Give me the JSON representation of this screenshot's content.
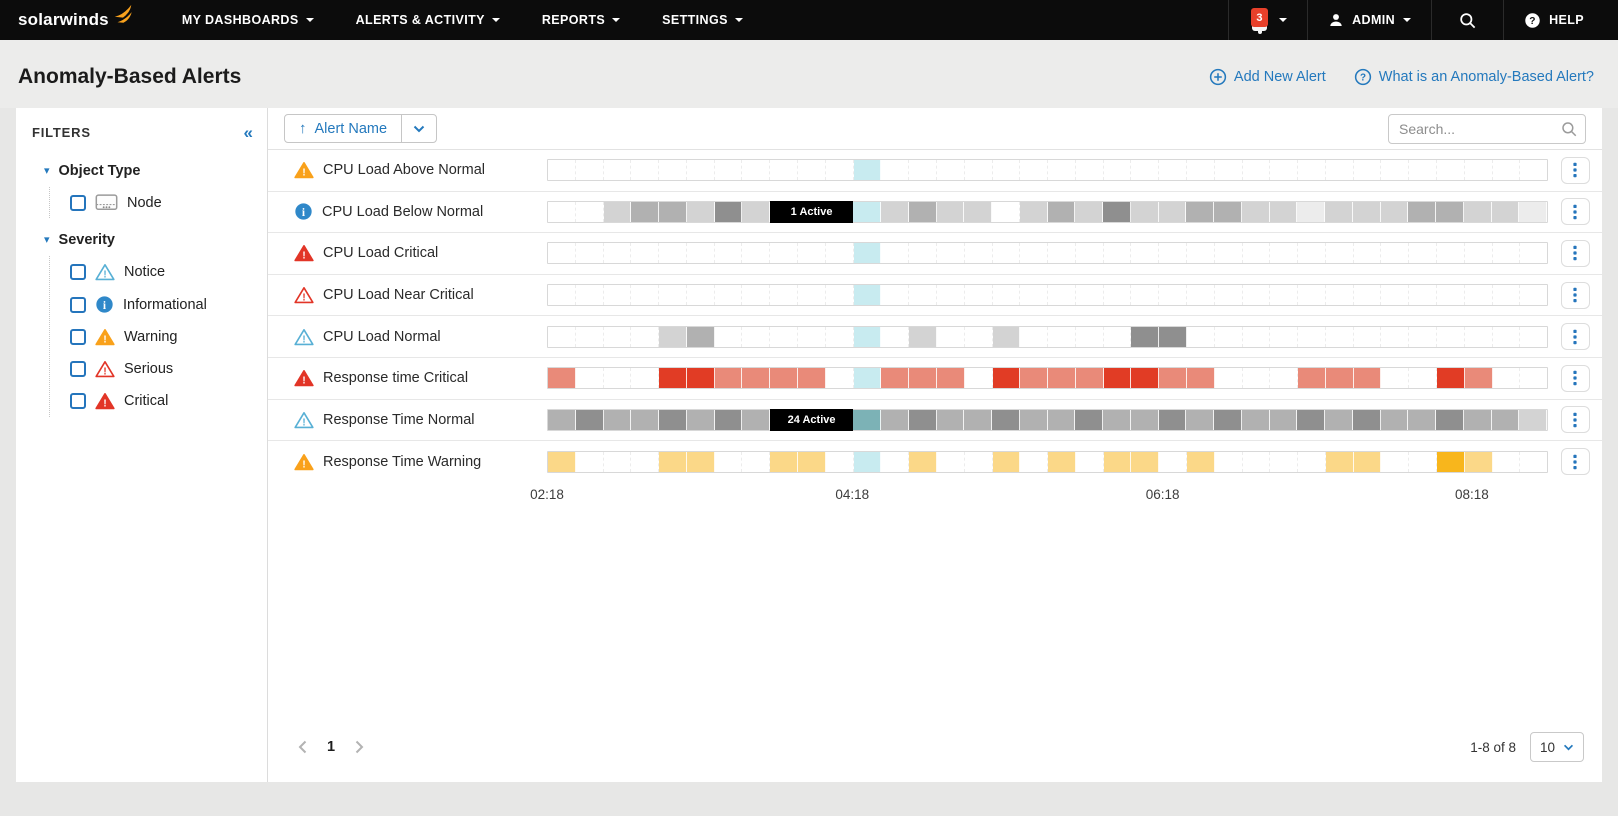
{
  "nav": {
    "brand": "solarwinds",
    "items": [
      {
        "label": "MY DASHBOARDS"
      },
      {
        "label": "ALERTS & ACTIVITY"
      },
      {
        "label": "REPORTS"
      },
      {
        "label": "SETTINGS"
      }
    ],
    "notification_count": "3",
    "user_label": "ADMIN",
    "help_label": "HELP"
  },
  "header": {
    "title": "Anomaly-Based Alerts",
    "actions": [
      {
        "label": "Add New Alert"
      },
      {
        "label": "What is an Anomaly-Based Alert?"
      }
    ]
  },
  "filters": {
    "title": "FILTERS",
    "collapse_icon": "«",
    "sections": [
      {
        "label": "Object Type",
        "items": [
          {
            "label": "Node",
            "icon": "node",
            "checked": false
          }
        ]
      },
      {
        "label": "Severity",
        "items": [
          {
            "label": "Notice",
            "icon": "notice",
            "checked": false
          },
          {
            "label": "Informational",
            "icon": "informational",
            "checked": false
          },
          {
            "label": "Warning",
            "icon": "warning",
            "checked": false
          },
          {
            "label": "Serious",
            "icon": "serious",
            "checked": false
          },
          {
            "label": "Critical",
            "icon": "critical",
            "checked": false
          }
        ]
      }
    ]
  },
  "toolbar": {
    "sort_label": "Alert Name",
    "search_placeholder": "Search..."
  },
  "colors": {
    "accent": "#2479bd",
    "warning": "#f9a11b",
    "critical": "#e23527",
    "notice": "#58b0d5",
    "info": "#2f88c9",
    "cells": {
      "w": "#ffffff",
      "l": "#ececec",
      "g": "#d3d3d3",
      "m": "#b1b1b1",
      "d": "#8f8f8f",
      "c": "#c8ebf0",
      "t": "#7cb2b6",
      "s": "#e98a79",
      "r": "#e13c25",
      "y": "#fbd888",
      "o": "#f8b61c",
      "b": "#000000"
    }
  },
  "timeline": {
    "axis_labels": [
      "02:18",
      "04:18",
      "06:18",
      "08:18"
    ],
    "axis_positions": [
      0,
      30.5,
      61.5,
      92.4
    ]
  },
  "alerts": [
    {
      "name": "CPU Load Above Normal",
      "severity": "warning",
      "cells": "wwwwwwwwwwwcwwwwwwwwwwwwwwwwwwwwwwww"
    },
    {
      "name": "CPU Load Below Normal",
      "severity": "informational",
      "cells": "wwgmmgdgbbbcgmggwgmgdggmmgglgggmmggl",
      "badge": {
        "text": "1 Active",
        "start": 8,
        "span": 3
      }
    },
    {
      "name": "CPU Load Critical",
      "severity": "critical",
      "cells": "wwwwwwwwwwwcwwwwwwwwwwwwwwwwwwwwwwww"
    },
    {
      "name": "CPU Load Near Critical",
      "severity": "serious",
      "cells": "wwwwwwwwwwwcwwwwwwwwwwwwwwwwwwwwwwww"
    },
    {
      "name": "CPU Load Normal",
      "severity": "notice",
      "cells": "wwwwgmwwwwwcwgwwgwwwwddwwwwwwwwwwwww"
    },
    {
      "name": "Response time Critical",
      "severity": "critical",
      "cells": "swwwrrsssswcssswrsssrrsswwwssswwrsww"
    },
    {
      "name": "Response Time Normal",
      "severity": "notice",
      "cells": "mdmmdmdmbbbtmdmmdmmdmmdmdmmdmdmmdmmg",
      "badge": {
        "text": "24 Active",
        "start": 8,
        "span": 3
      }
    },
    {
      "name": "Response Time Warning",
      "severity": "warning",
      "cells": "ywwwyywwyywcwywwywywyywywwwwyywwoyww"
    }
  ],
  "pagination": {
    "page": "1",
    "range": "1-8 of 8",
    "page_size": "10"
  }
}
